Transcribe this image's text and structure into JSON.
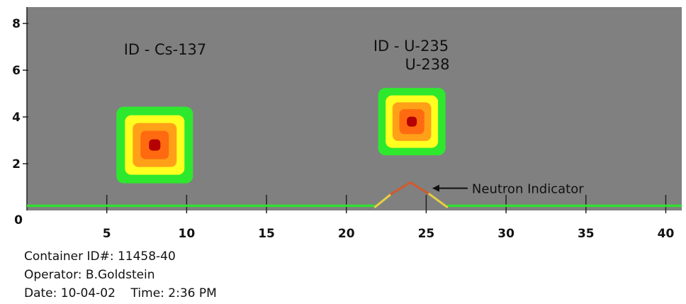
{
  "chart_data": {
    "type": "heatmap",
    "title": "",
    "xlabel": "",
    "ylabel": "",
    "xlim": [
      0,
      41
    ],
    "ylim": [
      0,
      8.7
    ],
    "x_ticks": [
      5,
      10,
      15,
      20,
      25,
      30,
      35,
      40
    ],
    "y_ticks": [
      2,
      4,
      6,
      8
    ],
    "origin_label": "0",
    "background_color": "#808080",
    "hotspots": [
      {
        "label": "ID - Cs-137",
        "x": 8.0,
        "y": 2.8
      },
      {
        "label": "ID - U-235",
        "label_line2": "U-238",
        "x": 24.1,
        "y": 3.8
      }
    ],
    "contour_colors": [
      "#2ee82e",
      "#ffff20",
      "#ffa018",
      "#ff6a10",
      "#b40000"
    ],
    "baseline": {
      "color": "#33dd33",
      "y": 0.2
    },
    "neutron_peak": {
      "label": "Neutron Indicator",
      "x": [
        21.8,
        22.8,
        24.0,
        25.2,
        26.3
      ],
      "y": [
        0.15,
        0.7,
        1.2,
        0.7,
        0.15
      ]
    }
  },
  "info": {
    "container_id": "Container ID#: 11458-40",
    "operator": "Operator: B.Goldstein",
    "date_time": "Date: 10-04-02    Time: 2:36 PM"
  }
}
